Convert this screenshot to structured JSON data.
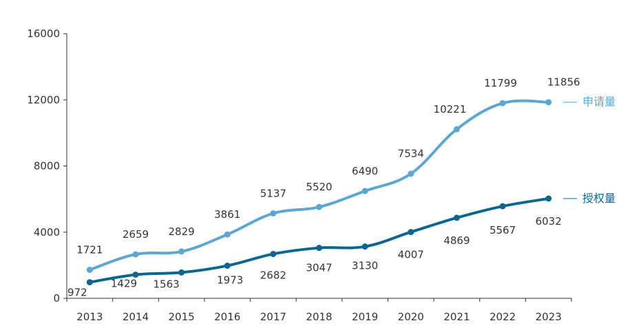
{
  "chart_data": {
    "type": "line",
    "title": "",
    "xlabel": "",
    "ylabel": "",
    "categories": [
      "2013",
      "2014",
      "2015",
      "2016",
      "2017",
      "2018",
      "2019",
      "2020",
      "2021",
      "2022",
      "2023"
    ],
    "ylim": [
      0,
      16000
    ],
    "yticks": [
      "0",
      "4000",
      "8000",
      "12000",
      "16000"
    ],
    "grid": false,
    "legend_placement": "right, at line ends",
    "series": [
      {
        "name": "申请量",
        "color": "#5ba7d1",
        "values": [
          1721,
          2659,
          2829,
          3861,
          5137,
          5520,
          6490,
          7534,
          10221,
          11799,
          11856
        ],
        "labels": [
          "1721",
          "2659",
          "2829",
          "3861",
          "5137",
          "5520",
          "6490",
          "7534",
          "10221",
          "11799",
          "11856"
        ]
      },
      {
        "name": "授权量",
        "color": "#0d6690",
        "values": [
          972,
          1429,
          1563,
          1973,
          2682,
          3047,
          3130,
          4007,
          4869,
          5567,
          6032
        ],
        "labels": [
          "972",
          "1429",
          "1563",
          "1973",
          "2682",
          "3047",
          "3130",
          "4007",
          "4869",
          "5567",
          "6032"
        ]
      }
    ]
  }
}
